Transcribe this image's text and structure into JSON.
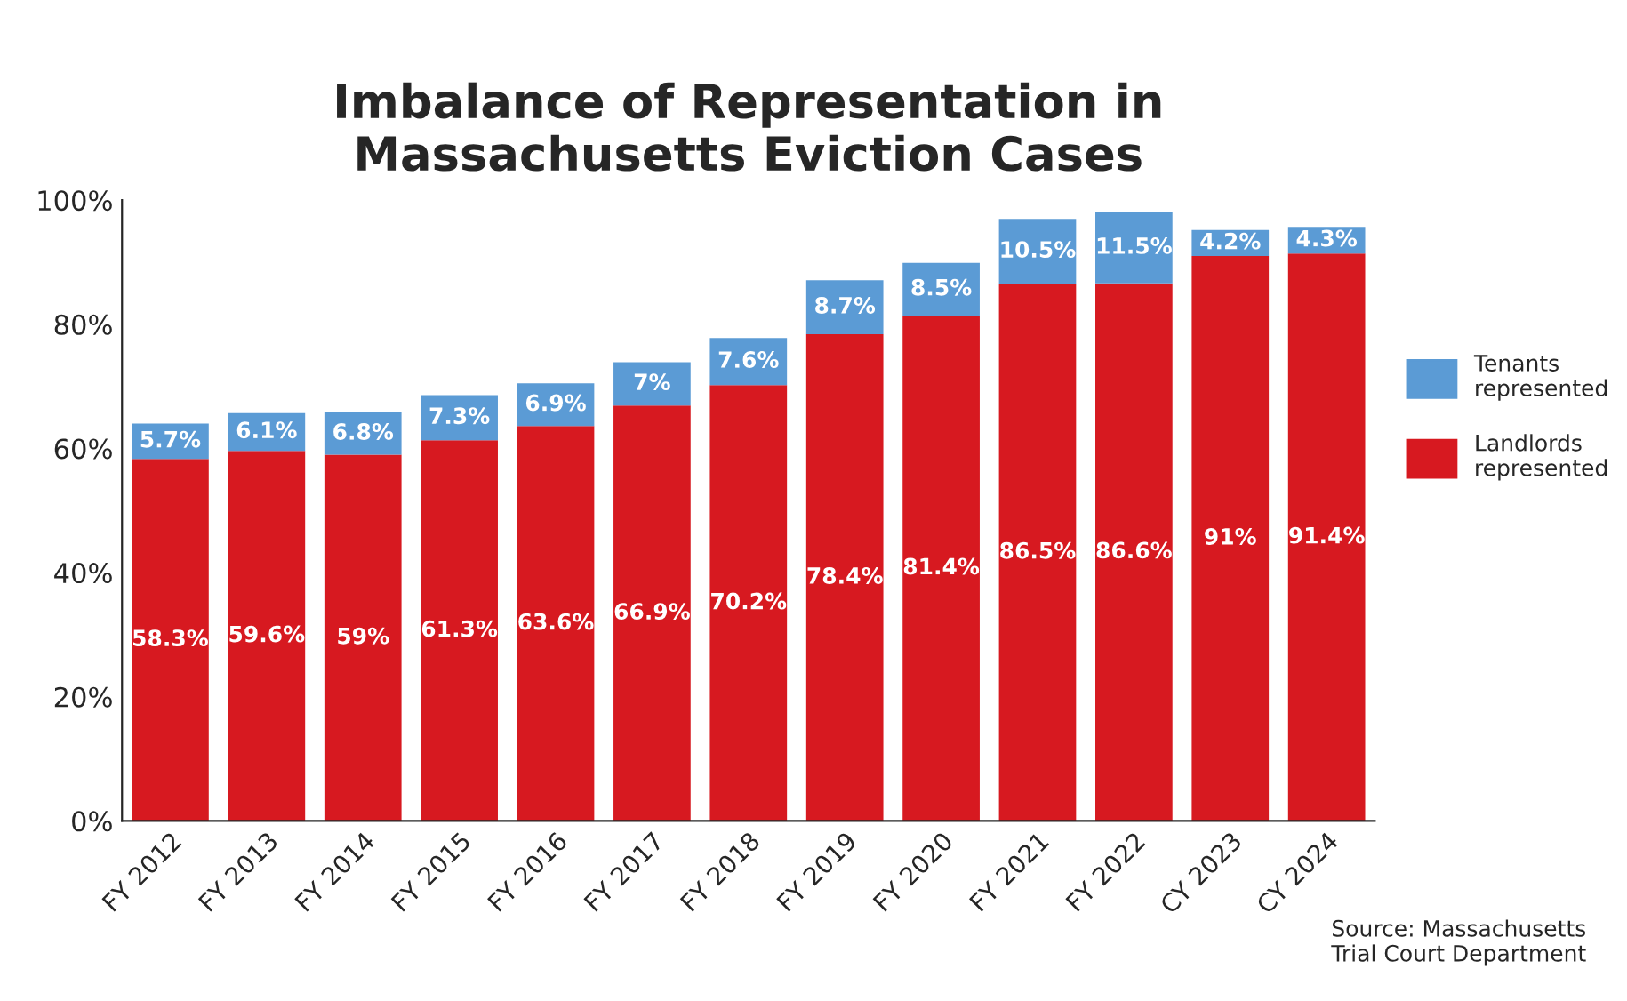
{
  "chart_data": {
    "type": "bar",
    "title": "Imbalance of Representation in\nMassachusetts Eviction Cases",
    "categories": [
      "FY 2012",
      "FY 2013",
      "FY 2014",
      "FY 2015",
      "FY 2016",
      "FY 2017",
      "FY 2018",
      "FY 2019",
      "FY 2020",
      "FY 2021",
      "FY 2022",
      "CY 2023",
      "CY 2024"
    ],
    "stacked": true,
    "series": [
      {
        "name": "Landlords represented",
        "color": "#d71920",
        "values": [
          58.3,
          59.6,
          59,
          61.3,
          63.6,
          66.9,
          70.2,
          78.4,
          81.4,
          86.5,
          86.6,
          91,
          91.4
        ],
        "value_labels": [
          "58.3%",
          "59.6%",
          "59%",
          "61.3%",
          "63.6%",
          "66.9%",
          "70.2%",
          "78.4%",
          "81.4%",
          "86.5%",
          "86.6%",
          "91%",
          "91.4%"
        ]
      },
      {
        "name": "Tenants represented",
        "color": "#5b9bd5",
        "values": [
          5.7,
          6.1,
          6.8,
          7.3,
          6.9,
          7,
          7.6,
          8.7,
          8.5,
          10.5,
          11.5,
          4.2,
          4.3
        ],
        "value_labels": [
          "5.7%",
          "6.1%",
          "6.8%",
          "7.3%",
          "6.9%",
          "7%",
          "7.6%",
          "8.7%",
          "8.5%",
          "10.5%",
          "11.5%",
          "4.2%",
          "4.3%"
        ]
      }
    ],
    "ylim": [
      0,
      100
    ],
    "yticks": [
      {
        "value": 0,
        "label": "0%"
      },
      {
        "value": 20,
        "label": "20%"
      },
      {
        "value": 40,
        "label": "40%"
      },
      {
        "value": 60,
        "label": "60%"
      },
      {
        "value": 80,
        "label": "80%"
      },
      {
        "value": 100,
        "label": "100%"
      }
    ],
    "grid": false,
    "legend": "right",
    "annotations": [
      "Source: Massachusetts\nTrial Court Department"
    ]
  }
}
